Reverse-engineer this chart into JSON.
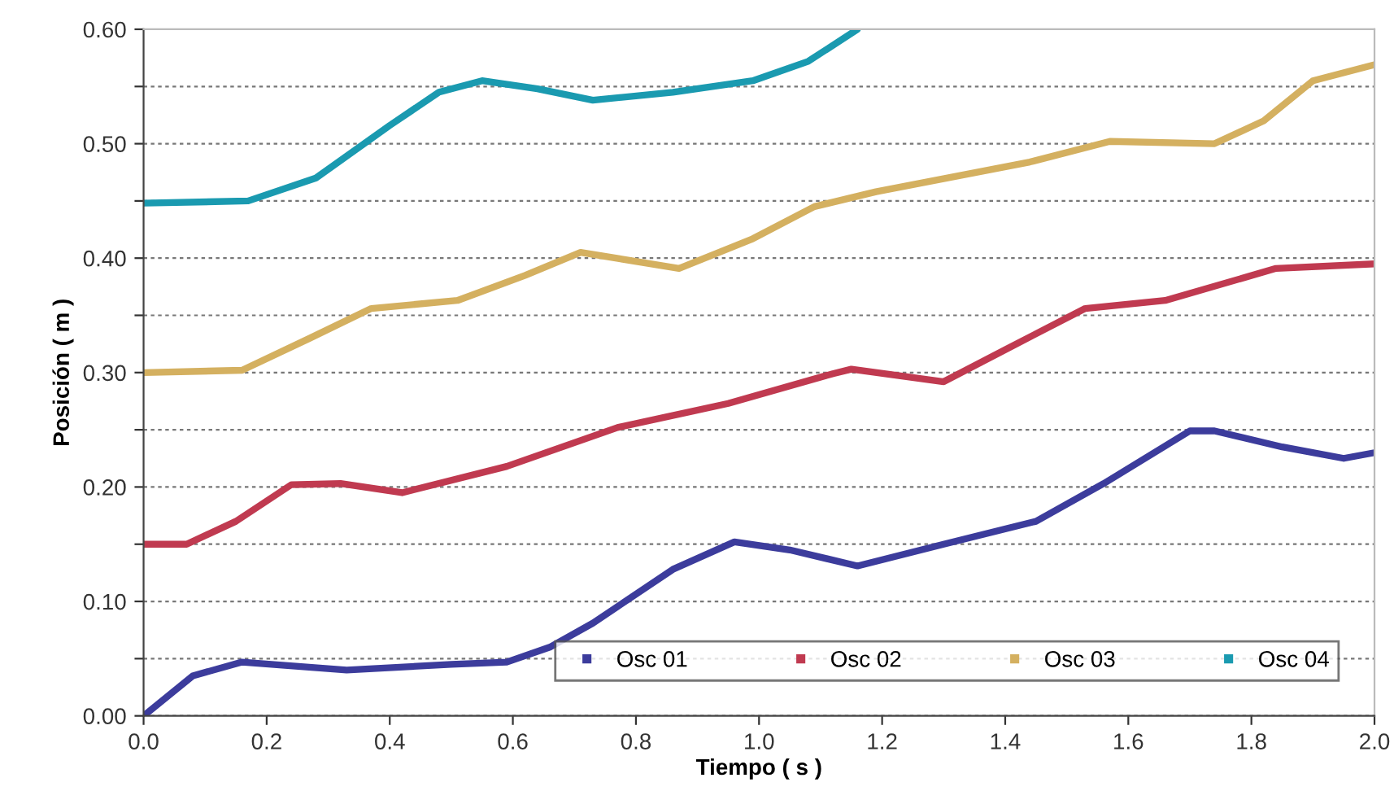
{
  "chart_data": {
    "type": "line",
    "xlabel": "Tiempo ( s )",
    "ylabel": "Posición ( m )",
    "xlim": [
      0,
      2.0
    ],
    "ylim": [
      0,
      0.6
    ],
    "xticks": [
      {
        "value": 0,
        "label": "0.0"
      },
      0.2,
      0.4,
      0.6,
      0.8,
      {
        "value": 1.0,
        "label": "1.0"
      },
      1.2,
      1.4,
      1.6,
      1.8,
      {
        "value": 2.0,
        "label": "2.0"
      }
    ],
    "yticks": [
      {
        "value": 0,
        "label": "0.00"
      },
      {
        "value": 0.05,
        "label": null
      },
      {
        "value": 0.1,
        "label": "0.10"
      },
      {
        "value": 0.15,
        "label": null
      },
      {
        "value": 0.2,
        "label": "0.20"
      },
      {
        "value": 0.25,
        "label": null
      },
      {
        "value": 0.3,
        "label": "0.30"
      },
      {
        "value": 0.35,
        "label": null
      },
      {
        "value": 0.4,
        "label": "0.40"
      },
      {
        "value": 0.45,
        "label": null
      },
      {
        "value": 0.5,
        "label": "0.50"
      },
      {
        "value": 0.55,
        "label": null
      },
      {
        "value": 0.6,
        "label": "0.60"
      }
    ],
    "grid": "y",
    "legend": "bottom right",
    "marker": "none",
    "line_style": "solid",
    "series": [
      {
        "name": "Osc 01",
        "color": "#3c3c9c",
        "x": [
          0,
          0.08,
          0.16,
          0.33,
          0.5,
          0.59,
          0.66,
          0.73,
          0.86,
          0.96,
          1.05,
          1.16,
          1.3,
          1.45,
          1.56,
          1.7,
          1.74,
          1.85,
          1.95,
          2.0
        ],
        "values": [
          0,
          0.035,
          0.047,
          0.04,
          0.045,
          0.047,
          0.06,
          0.081,
          0.128,
          0.152,
          0.145,
          0.131,
          0.15,
          0.17,
          0.203,
          0.249,
          0.249,
          0.235,
          0.225,
          0.23
        ]
      },
      {
        "name": "Osc 02",
        "color": "#c03a50",
        "x": [
          0,
          0.07,
          0.15,
          0.24,
          0.32,
          0.42,
          0.59,
          0.77,
          0.95,
          1.12,
          1.15,
          1.3,
          1.4,
          1.53,
          1.66,
          1.84,
          2.0
        ],
        "values": [
          0.15,
          0.15,
          0.17,
          0.202,
          0.203,
          0.195,
          0.218,
          0.252,
          0.273,
          0.299,
          0.303,
          0.292,
          0.32,
          0.356,
          0.363,
          0.391,
          0.395
        ]
      },
      {
        "name": "Osc 03",
        "color": "#d4b060",
        "x": [
          0,
          0.16,
          0.27,
          0.37,
          0.51,
          0.62,
          0.71,
          0.87,
          0.99,
          1.09,
          1.19,
          1.44,
          1.57,
          1.74,
          1.82,
          1.9,
          2.0
        ],
        "values": [
          0.3,
          0.302,
          0.33,
          0.356,
          0.363,
          0.385,
          0.405,
          0.391,
          0.417,
          0.445,
          0.458,
          0.484,
          0.502,
          0.5,
          0.52,
          0.555,
          0.569
        ]
      },
      {
        "name": "Osc 04",
        "color": "#1a9ab0",
        "x": [
          0,
          0.17,
          0.28,
          0.4,
          0.48,
          0.55,
          0.64,
          0.73,
          0.86,
          0.99,
          1.08,
          1.16
        ],
        "values": [
          0.448,
          0.45,
          0.47,
          0.516,
          0.545,
          0.555,
          0.548,
          0.538,
          0.545,
          0.555,
          0.572,
          0.6
        ]
      }
    ]
  }
}
